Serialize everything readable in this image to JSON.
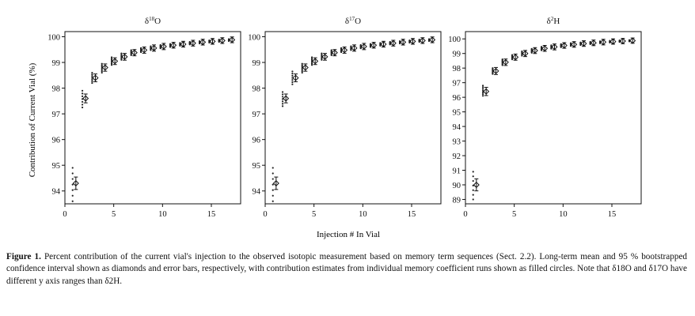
{
  "figure": {
    "y_axis_label": "Contribution of Current Vial (%)",
    "x_axis_label": "Injection # In Vial",
    "caption_label": "Figure 1.",
    "caption_text": "Percent contribution of the current vial's injection to the observed isotopic measurement based on memory term sequences (Sect. 2.2). Long-term mean and 95 % bootstrapped confidence interval shown as diamonds and error bars, respectively, with contribution estimates from individual memory coefficient runs shown as filled circles. Note that δ18O and δ17O have different y axis ranges than δ2H."
  },
  "chart_data": [
    {
      "type": "scatter",
      "title": "δ18O",
      "xlabel": "Injection # In Vial",
      "ylabel": "Contribution of Current Vial (%)",
      "xlim": [
        0,
        18
      ],
      "ylim": [
        93.5,
        100.2
      ],
      "xticks": [
        "0",
        "5",
        "10",
        "15"
      ],
      "yticks": [
        "94",
        "95",
        "96",
        "97",
        "98",
        "99",
        "100"
      ],
      "x": [
        1,
        2,
        3,
        4,
        5,
        6,
        7,
        8,
        9,
        10,
        11,
        12,
        13,
        14,
        15,
        16,
        17
      ],
      "mean": [
        94.3,
        97.6,
        98.4,
        98.8,
        99.05,
        99.22,
        99.38,
        99.48,
        99.56,
        99.62,
        99.67,
        99.71,
        99.75,
        99.79,
        99.82,
        99.85,
        99.88
      ],
      "ci_half_width": [
        0.15,
        0.08,
        0.06,
        0.05,
        0.04,
        0.04,
        0.03,
        0.03,
        0.03,
        0.03,
        0.02,
        0.02,
        0.02,
        0.02,
        0.02,
        0.02,
        0.02
      ],
      "run_spread_low": [
        93.6,
        97.25,
        98.2,
        98.6,
        98.9,
        99.1,
        99.28,
        99.4,
        99.48,
        99.55,
        99.6,
        99.65,
        99.7,
        99.74,
        99.77,
        99.8,
        99.83
      ],
      "run_spread_high": [
        94.9,
        97.9,
        98.6,
        98.95,
        99.2,
        99.35,
        99.48,
        99.56,
        99.63,
        99.68,
        99.72,
        99.76,
        99.8,
        99.83,
        99.86,
        99.89,
        99.91
      ]
    },
    {
      "type": "scatter",
      "title": "δ17O",
      "xlabel": "Injection # In Vial",
      "ylabel": "",
      "xlim": [
        0,
        18
      ],
      "ylim": [
        93.5,
        100.2
      ],
      "xticks": [
        "0",
        "5",
        "10",
        "15"
      ],
      "yticks": [
        "94",
        "95",
        "96",
        "97",
        "98",
        "99",
        "100"
      ],
      "x": [
        1,
        2,
        3,
        4,
        5,
        6,
        7,
        8,
        9,
        10,
        11,
        12,
        13,
        14,
        15,
        16,
        17
      ],
      "mean": [
        94.3,
        97.6,
        98.4,
        98.8,
        99.05,
        99.22,
        99.38,
        99.48,
        99.56,
        99.62,
        99.67,
        99.71,
        99.75,
        99.79,
        99.82,
        99.85,
        99.88
      ],
      "ci_half_width": [
        0.15,
        0.08,
        0.06,
        0.05,
        0.04,
        0.04,
        0.03,
        0.03,
        0.03,
        0.03,
        0.02,
        0.02,
        0.02,
        0.02,
        0.02,
        0.02,
        0.02
      ],
      "run_spread_low": [
        93.6,
        97.3,
        98.15,
        98.6,
        98.9,
        99.1,
        99.28,
        99.4,
        99.48,
        99.55,
        99.6,
        99.65,
        99.7,
        99.74,
        99.77,
        99.8,
        99.83
      ],
      "run_spread_high": [
        94.9,
        97.85,
        98.65,
        98.95,
        99.2,
        99.35,
        99.48,
        99.56,
        99.63,
        99.68,
        99.72,
        99.76,
        99.8,
        99.83,
        99.86,
        99.89,
        99.91
      ]
    },
    {
      "type": "scatter",
      "title": "δ2H",
      "xlabel": "Injection # In Vial",
      "ylabel": "",
      "xlim": [
        0,
        18
      ],
      "ylim": [
        88.7,
        100.5
      ],
      "xticks": [
        "0",
        "5",
        "10",
        "15"
      ],
      "yticks": [
        "89",
        "90",
        "91",
        "92",
        "93",
        "94",
        "95",
        "96",
        "97",
        "98",
        "99",
        "100"
      ],
      "x": [
        1,
        2,
        3,
        4,
        5,
        6,
        7,
        8,
        9,
        10,
        11,
        12,
        13,
        14,
        15,
        16,
        17
      ],
      "mean": [
        90.0,
        96.4,
        97.8,
        98.4,
        98.75,
        99.0,
        99.2,
        99.35,
        99.45,
        99.55,
        99.62,
        99.68,
        99.73,
        99.78,
        99.82,
        99.85,
        99.88
      ],
      "ci_half_width": [
        0.25,
        0.12,
        0.08,
        0.06,
        0.05,
        0.05,
        0.04,
        0.04,
        0.04,
        0.03,
        0.03,
        0.03,
        0.03,
        0.03,
        0.02,
        0.02,
        0.02
      ],
      "run_spread_low": [
        89.0,
        96.1,
        97.6,
        98.2,
        98.6,
        98.85,
        99.05,
        99.22,
        99.33,
        99.43,
        99.52,
        99.58,
        99.64,
        99.7,
        99.75,
        99.79,
        99.83
      ],
      "run_spread_high": [
        90.9,
        96.8,
        98.0,
        98.6,
        98.9,
        99.15,
        99.32,
        99.46,
        99.56,
        99.64,
        99.71,
        99.76,
        99.8,
        99.84,
        99.87,
        99.9,
        99.92
      ]
    }
  ]
}
